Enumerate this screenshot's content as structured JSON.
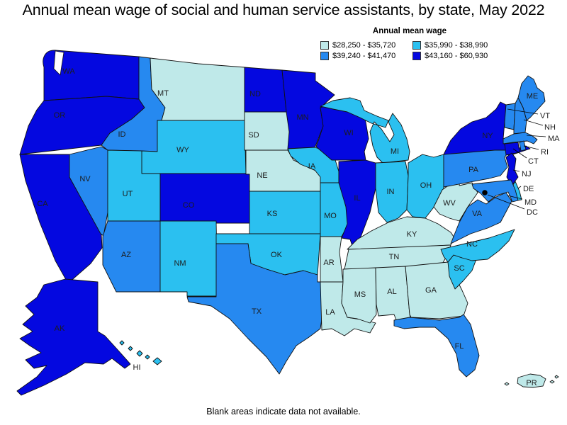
{
  "title": "Annual mean wage of social and human service assistants, by state, May 2022",
  "legend": {
    "title": "Annual mean wage",
    "items": [
      {
        "label": "$28,250 - $35,720",
        "color": "#bfe9e9"
      },
      {
        "label": "$35,990 - $38,990",
        "color": "#2bc0f0"
      },
      {
        "label": "$39,240 - $41,470",
        "color": "#2689f0"
      },
      {
        "label": "$43,160 - $60,930",
        "color": "#0408e0"
      }
    ]
  },
  "footnote": "Blank areas indicate data not available.",
  "map": {
    "states": [
      {
        "abbr": "WA",
        "category": 4
      },
      {
        "abbr": "OR",
        "category": 4
      },
      {
        "abbr": "CA",
        "category": 4
      },
      {
        "abbr": "NV",
        "category": 3
      },
      {
        "abbr": "ID",
        "category": 3
      },
      {
        "abbr": "MT",
        "category": 1
      },
      {
        "abbr": "WY",
        "category": 2
      },
      {
        "abbr": "UT",
        "category": 2
      },
      {
        "abbr": "CO",
        "category": 4
      },
      {
        "abbr": "AZ",
        "category": 3
      },
      {
        "abbr": "NM",
        "category": 2
      },
      {
        "abbr": "ND",
        "category": 4
      },
      {
        "abbr": "SD",
        "category": 1
      },
      {
        "abbr": "NE",
        "category": 1
      },
      {
        "abbr": "KS",
        "category": 2
      },
      {
        "abbr": "OK",
        "category": 2
      },
      {
        "abbr": "TX",
        "category": 3
      },
      {
        "abbr": "MN",
        "category": 4
      },
      {
        "abbr": "IA",
        "category": 2
      },
      {
        "abbr": "MO",
        "category": 2
      },
      {
        "abbr": "AR",
        "category": 1
      },
      {
        "abbr": "LA",
        "category": 1
      },
      {
        "abbr": "WI",
        "category": 4
      },
      {
        "abbr": "IL",
        "category": 4
      },
      {
        "abbr": "MI",
        "category": 2
      },
      {
        "abbr": "IN",
        "category": 2
      },
      {
        "abbr": "OH",
        "category": 2
      },
      {
        "abbr": "KY",
        "category": 1
      },
      {
        "abbr": "TN",
        "category": 1
      },
      {
        "abbr": "MS",
        "category": 1
      },
      {
        "abbr": "AL",
        "category": 1
      },
      {
        "abbr": "GA",
        "category": 1
      },
      {
        "abbr": "FL",
        "category": 3
      },
      {
        "abbr": "SC",
        "category": 2
      },
      {
        "abbr": "NC",
        "category": 2
      },
      {
        "abbr": "VA",
        "category": 3
      },
      {
        "abbr": "WV",
        "category": 1
      },
      {
        "abbr": "PA",
        "category": 3
      },
      {
        "abbr": "NY",
        "category": 4
      },
      {
        "abbr": "ME",
        "category": 3
      },
      {
        "abbr": "VT",
        "category": 3
      },
      {
        "abbr": "NH",
        "category": 3
      },
      {
        "abbr": "MA",
        "category": 3
      },
      {
        "abbr": "RI",
        "category": 3
      },
      {
        "abbr": "CT",
        "category": 4
      },
      {
        "abbr": "NJ",
        "category": 4
      },
      {
        "abbr": "DE",
        "category": 2
      },
      {
        "abbr": "MD",
        "category": 3
      },
      {
        "abbr": "DC",
        "category": 4
      },
      {
        "abbr": "AK",
        "category": 4
      },
      {
        "abbr": "HI",
        "category": 2
      },
      {
        "abbr": "PR",
        "category": 1
      }
    ]
  }
}
